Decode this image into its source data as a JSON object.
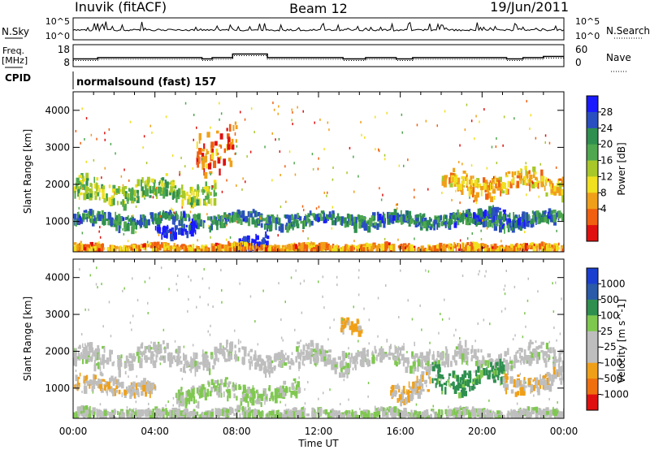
{
  "header": {
    "title": "Inuvik (fitACF)",
    "beam": "Beam 12",
    "date": "19/Jun/2011"
  },
  "panels": {
    "nsky": {
      "label": "N.Sky",
      "ticks_left": [
        "10^5",
        "10^0"
      ],
      "ticks_right": [
        "10^5",
        "10^0"
      ],
      "right_label": "N.Search"
    },
    "freq": {
      "label": "Freq.",
      "unit": "[MHz]",
      "ticks_left": [
        "18",
        "8"
      ],
      "ticks_right": [
        "60",
        "0"
      ],
      "right_label": "Nave"
    },
    "cpid": {
      "label": "CPID",
      "text": "normalsound (fast) 157"
    }
  },
  "colors": {
    "power": [
      "#1a1aff",
      "#2a4fc0",
      "#2f8f4f",
      "#4fa84f",
      "#a8c82a",
      "#f0e020",
      "#f0a018",
      "#f06010",
      "#e01010"
    ],
    "velocity": [
      "#1a3fd0",
      "#2a5aa8",
      "#2f8f4f",
      "#7fc850",
      "#bebebe",
      "#bebebe",
      "#f0a018",
      "#f07010",
      "#e01010"
    ]
  },
  "chart_data": [
    {
      "type": "heatmap",
      "name": "power",
      "xlabel": "Time UT",
      "ylabel": "Slant Range [km]",
      "xticks": [
        "00:00",
        "04:00",
        "08:00",
        "12:00",
        "16:00",
        "20:00",
        "00:00"
      ],
      "xlim": [
        0,
        24
      ],
      "ylim": [
        180,
        4500
      ],
      "yticks": [
        "1000",
        "2000",
        "3000",
        "4000"
      ],
      "colorbar": {
        "label": "Power [dB]",
        "ticks": [
          "28",
          "24",
          "20",
          "16",
          "12",
          "8",
          "4"
        ],
        "range": [
          0,
          30
        ]
      },
      "bands": [
        {
          "range_km": [
            850,
            1200
          ],
          "time_h": [
            0,
            24
          ],
          "level": 22
        },
        {
          "range_km": [
            1500,
            2100
          ],
          "time_h": [
            0,
            7
          ],
          "level": 16
        },
        {
          "range_km": [
            1700,
            2300
          ],
          "time_h": [
            18,
            24
          ],
          "level": 10
        },
        {
          "range_km": [
            600,
            900
          ],
          "time_h": [
            4,
            6
          ],
          "level": 28
        },
        {
          "range_km": [
            200,
            600
          ],
          "time_h": [
            8,
            9.5
          ],
          "level": 28
        },
        {
          "range_km": [
            900,
            1300
          ],
          "time_h": [
            19.5,
            22
          ],
          "level": 26
        },
        {
          "range_km": [
            2500,
            3600
          ],
          "time_h": [
            6,
            8
          ],
          "level": 6
        },
        {
          "range_km": [
            180,
            350
          ],
          "time_h": [
            0,
            24
          ],
          "level": 8
        }
      ]
    },
    {
      "type": "heatmap",
      "name": "velocity",
      "xlabel": "Time UT",
      "ylabel": "Slant Range [km]",
      "xticks": [
        "00:00",
        "04:00",
        "08:00",
        "12:00",
        "16:00",
        "20:00",
        "00:00"
      ],
      "xlim": [
        0,
        24
      ],
      "ylim": [
        180,
        4500
      ],
      "yticks": [
        "1000",
        "2000",
        "3000",
        "4000"
      ],
      "colorbar": {
        "label": "Velocity [m s^-1]",
        "ticks": [
          "1000",
          "500",
          "100",
          "25",
          "-25",
          "-100",
          "-500",
          "-1000"
        ],
        "range": [
          -1000,
          1000
        ]
      },
      "bands": [
        {
          "range_km": [
            800,
            1300
          ],
          "time_h": [
            0,
            4
          ],
          "level": -300
        },
        {
          "range_km": [
            1500,
            2100
          ],
          "time_h": [
            0,
            24
          ],
          "level": 0
        },
        {
          "range_km": [
            600,
            1100
          ],
          "time_h": [
            5,
            11
          ],
          "level": 150
        },
        {
          "range_km": [
            700,
            1300
          ],
          "time_h": [
            15.5,
            17.5
          ],
          "level": -300
        },
        {
          "range_km": [
            900,
            1600
          ],
          "time_h": [
            17.5,
            21
          ],
          "level": 400
        },
        {
          "range_km": [
            900,
            1400
          ],
          "time_h": [
            21,
            24
          ],
          "level": -300
        },
        {
          "range_km": [
            2500,
            2900
          ],
          "time_h": [
            13,
            14
          ],
          "level": -400
        },
        {
          "range_km": [
            180,
            400
          ],
          "time_h": [
            0,
            24
          ],
          "level": 60
        }
      ]
    }
  ]
}
